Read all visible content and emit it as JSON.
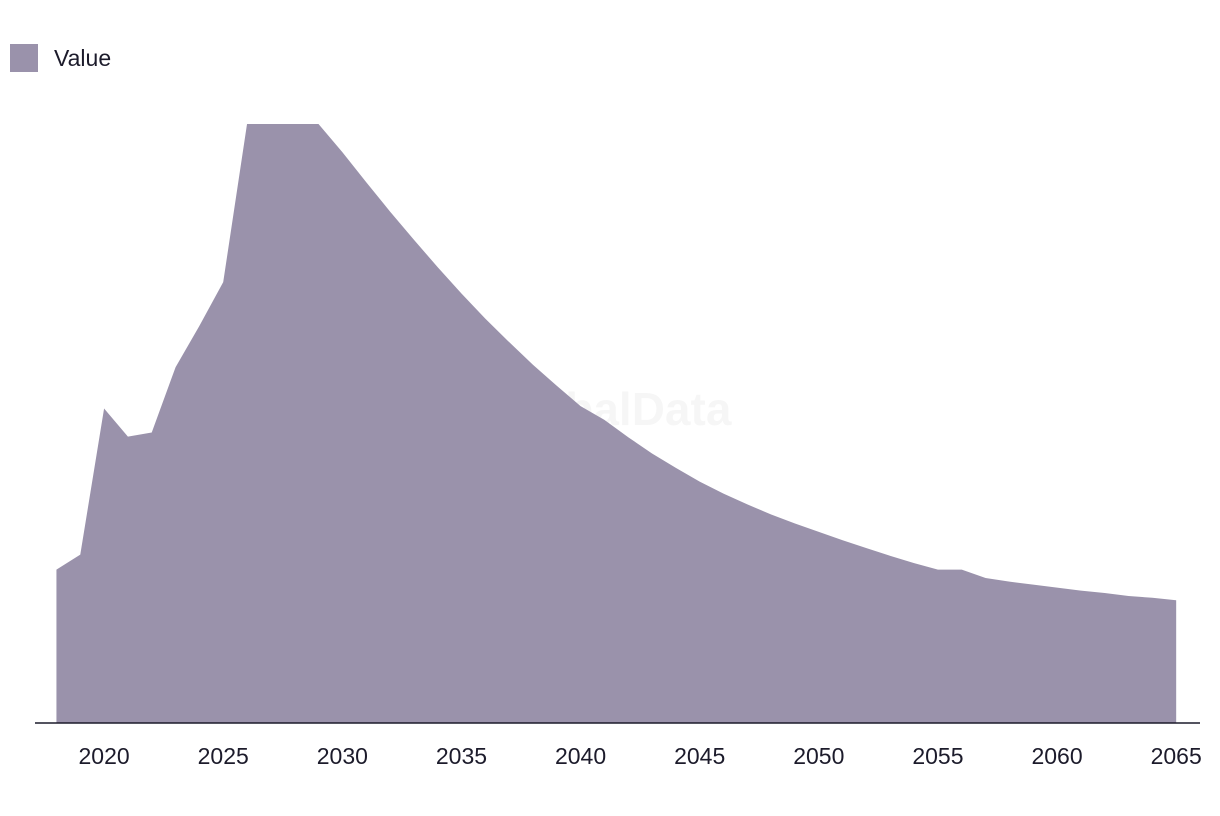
{
  "watermark": "GlobalData",
  "colors": {
    "area": "#9a92ab",
    "axis": "#1c1b2b",
    "text": "#1c1b2b"
  },
  "chart_data": {
    "type": "area",
    "legend": [
      {
        "label": "Value",
        "color": "#9a92ab"
      }
    ],
    "legend_position": "top-left",
    "grid": false,
    "x": [
      2018,
      2019,
      2020,
      2021,
      2022,
      2023,
      2024,
      2025,
      2026,
      2027,
      2028,
      2029,
      2030,
      2031,
      2032,
      2033,
      2034,
      2035,
      2036,
      2037,
      2038,
      2039,
      2040,
      2041,
      2042,
      2043,
      2044,
      2045,
      2046,
      2047,
      2048,
      2049,
      2050,
      2051,
      2052,
      2053,
      2054,
      2055,
      2056,
      2057,
      2058,
      2059,
      2060,
      2061,
      2062,
      2063,
      2064,
      2065
    ],
    "series": [
      {
        "name": "Value",
        "values": [
          25.6,
          28.1,
          52.5,
          47.8,
          48.5,
          59.4,
          66.3,
          73.6,
          100,
          100,
          100,
          100,
          95.3,
          90.3,
          85.4,
          80.7,
          76.1,
          71.7,
          67.5,
          63.6,
          59.8,
          56.3,
          52.9,
          50.6,
          47.7,
          45.0,
          42.6,
          40.3,
          38.3,
          36.5,
          34.8,
          33.3,
          31.9,
          30.5,
          29.2,
          27.9,
          26.7,
          25.6,
          25.6,
          24.2,
          23.6,
          23.1,
          22.6,
          22.1,
          21.7,
          21.2,
          20.9,
          20.5
        ]
      }
    ],
    "xticks": [
      "2020",
      "2025",
      "2030",
      "2035",
      "2040",
      "2045",
      "2050",
      "2055",
      "2060",
      "2065"
    ],
    "xlim": [
      2017.1,
      2066.0
    ],
    "ylim": [
      0,
      100
    ]
  }
}
